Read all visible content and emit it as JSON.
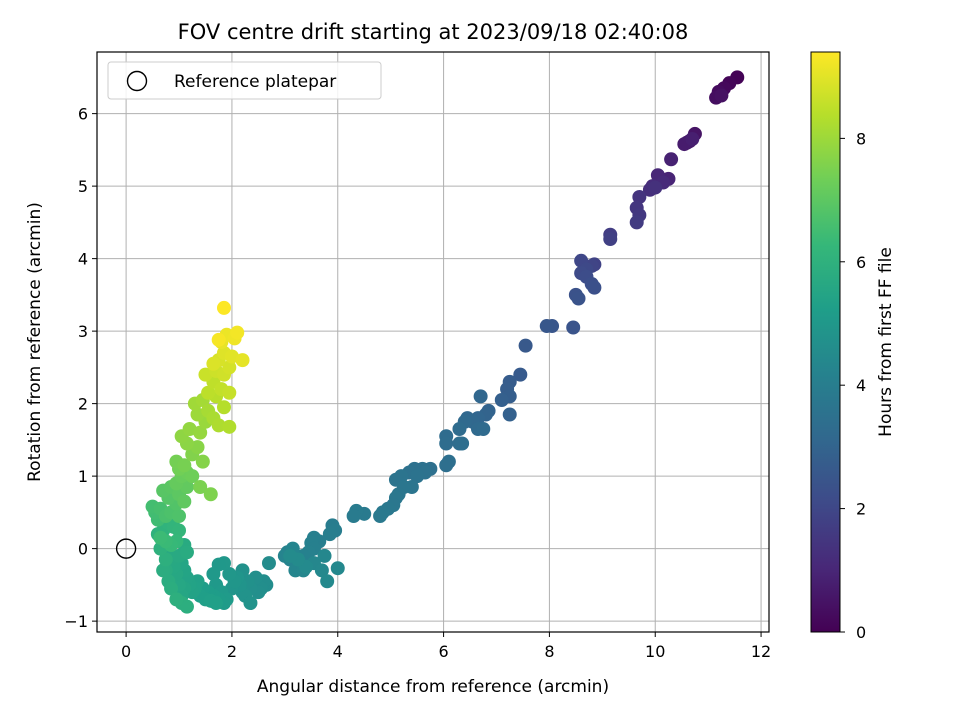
{
  "chart_data": {
    "type": "scatter",
    "title": "FOV centre drift starting at 2023/09/18 02:40:08",
    "xlabel": "Angular distance from reference (arcmin)",
    "ylabel": "Rotation from reference (arcmin)",
    "xlim": [
      -0.55,
      12.15
    ],
    "ylim": [
      -1.15,
      6.85
    ],
    "xticks": [
      0,
      2,
      4,
      6,
      8,
      10,
      12
    ],
    "yticks": [
      -1,
      0,
      1,
      2,
      3,
      4,
      5,
      6
    ],
    "xtick_labels": [
      "0",
      "2",
      "4",
      "6",
      "8",
      "10",
      "12"
    ],
    "ytick_labels": [
      "−1",
      "0",
      "1",
      "2",
      "3",
      "4",
      "5",
      "6"
    ],
    "grid": true,
    "legend": {
      "position": "top-left",
      "entries": [
        {
          "label": "Reference platepar",
          "marker": "open-circle"
        }
      ]
    },
    "reference_point": {
      "x": 0,
      "y": 0
    },
    "colorbar": {
      "label": "Hours from first FF file",
      "colormap": "viridis",
      "range": [
        0,
        9.4
      ],
      "ticks": [
        0,
        2,
        4,
        6,
        8
      ],
      "tick_labels": [
        "0",
        "2",
        "4",
        "6",
        "8"
      ]
    },
    "points": [
      [
        11.55,
        6.5,
        0.05
      ],
      [
        11.4,
        6.42,
        0.12
      ],
      [
        11.3,
        6.35,
        0.2
      ],
      [
        11.2,
        6.3,
        0.28
      ],
      [
        11.15,
        6.22,
        0.35
      ],
      [
        11.25,
        6.25,
        0.42
      ],
      [
        10.75,
        5.72,
        0.5
      ],
      [
        10.65,
        5.62,
        0.58
      ],
      [
        10.6,
        5.6,
        0.65
      ],
      [
        10.55,
        5.58,
        0.72
      ],
      [
        10.7,
        5.65,
        0.8
      ],
      [
        10.3,
        5.37,
        0.88
      ],
      [
        10.25,
        5.1,
        0.95
      ],
      [
        10.05,
        5.15,
        1.02
      ],
      [
        10.15,
        5.05,
        1.1
      ],
      [
        9.95,
        5.0,
        1.18
      ],
      [
        9.9,
        4.95,
        1.25
      ],
      [
        10.0,
        4.98,
        1.32
      ],
      [
        9.7,
        4.85,
        1.4
      ],
      [
        9.65,
        4.7,
        1.48
      ],
      [
        9.7,
        4.6,
        1.55
      ],
      [
        9.65,
        4.5,
        1.62
      ],
      [
        9.15,
        4.33,
        1.7
      ],
      [
        9.15,
        4.27,
        1.78
      ],
      [
        8.85,
        3.92,
        1.85
      ],
      [
        8.8,
        3.9,
        1.92
      ],
      [
        8.6,
        3.97,
        2.0
      ],
      [
        8.7,
        3.85,
        2.05
      ],
      [
        8.6,
        3.8,
        2.12
      ],
      [
        8.7,
        3.75,
        2.2
      ],
      [
        8.8,
        3.65,
        2.25
      ],
      [
        8.85,
        3.6,
        2.3
      ],
      [
        8.5,
        3.5,
        2.35
      ],
      [
        8.55,
        3.45,
        2.4
      ],
      [
        8.45,
        3.05,
        2.45
      ],
      [
        8.05,
        3.07,
        2.5
      ],
      [
        7.95,
        3.07,
        2.55
      ],
      [
        7.55,
        2.8,
        2.6
      ],
      [
        7.45,
        2.4,
        2.65
      ],
      [
        7.25,
        2.3,
        2.7
      ],
      [
        7.2,
        2.2,
        2.75
      ],
      [
        7.25,
        2.1,
        2.8
      ],
      [
        7.1,
        2.05,
        2.85
      ],
      [
        7.25,
        1.85,
        2.9
      ],
      [
        6.85,
        1.9,
        2.95
      ],
      [
        6.8,
        1.85,
        3.0
      ],
      [
        6.65,
        1.8,
        3.05
      ],
      [
        6.7,
        2.1,
        3.1
      ],
      [
        6.55,
        1.75,
        3.12
      ],
      [
        6.45,
        1.8,
        3.15
      ],
      [
        6.4,
        1.75,
        3.2
      ],
      [
        6.65,
        1.65,
        3.22
      ],
      [
        6.75,
        1.65,
        3.25
      ],
      [
        6.3,
        1.65,
        3.28
      ],
      [
        6.05,
        1.55,
        3.3
      ],
      [
        6.05,
        1.45,
        3.32
      ],
      [
        6.3,
        1.45,
        3.35
      ],
      [
        6.35,
        1.45,
        3.38
      ],
      [
        6.1,
        1.2,
        3.4
      ],
      [
        6.05,
        1.15,
        3.42
      ],
      [
        5.75,
        1.1,
        3.45
      ],
      [
        5.6,
        1.1,
        3.48
      ],
      [
        5.45,
        1.1,
        3.5
      ],
      [
        5.35,
        1.05,
        3.52
      ],
      [
        5.65,
        1.05,
        3.55
      ],
      [
        5.5,
        1.0,
        3.58
      ],
      [
        5.2,
        1.0,
        3.6
      ],
      [
        5.1,
        0.95,
        3.62
      ],
      [
        5.4,
        0.85,
        3.65
      ],
      [
        5.25,
        0.85,
        3.68
      ],
      [
        5.15,
        0.75,
        3.7
      ],
      [
        5.1,
        0.7,
        3.72
      ],
      [
        5.05,
        0.6,
        3.75
      ],
      [
        4.95,
        0.55,
        3.78
      ],
      [
        4.85,
        0.5,
        3.8
      ],
      [
        4.8,
        0.45,
        3.82
      ],
      [
        4.5,
        0.48,
        3.85
      ],
      [
        4.35,
        0.52,
        3.88
      ],
      [
        4.3,
        0.45,
        3.9
      ],
      [
        3.9,
        0.32,
        3.95
      ],
      [
        3.95,
        0.25,
        3.98
      ],
      [
        3.85,
        0.2,
        4.0
      ],
      [
        3.65,
        0.1,
        4.02
      ],
      [
        3.55,
        0.15,
        4.05
      ],
      [
        3.5,
        0.08,
        4.08
      ],
      [
        3.55,
        0.0,
        4.1
      ],
      [
        3.45,
        -0.05,
        4.12
      ],
      [
        3.35,
        -0.1,
        4.15
      ],
      [
        3.3,
        -0.2,
        4.18
      ],
      [
        3.1,
        -0.15,
        4.2
      ],
      [
        3.05,
        -0.05,
        4.22
      ],
      [
        3.0,
        -0.1,
        4.25
      ],
      [
        3.15,
        0.0,
        4.28
      ],
      [
        3.2,
        -0.3,
        4.3
      ],
      [
        3.35,
        -0.3,
        4.32
      ],
      [
        3.55,
        -0.2,
        4.35
      ],
      [
        3.75,
        -0.1,
        4.38
      ],
      [
        3.7,
        -0.3,
        4.4
      ],
      [
        4.0,
        -0.27,
        4.42
      ],
      [
        3.8,
        -0.45,
        4.45
      ],
      [
        3.4,
        -0.25,
        4.48
      ],
      [
        3.25,
        -0.15,
        4.5
      ],
      [
        3.1,
        -0.1,
        4.52
      ],
      [
        2.7,
        -0.2,
        4.55
      ],
      [
        2.65,
        -0.5,
        4.58
      ],
      [
        2.6,
        -0.45,
        4.6
      ],
      [
        2.55,
        -0.55,
        4.62
      ],
      [
        2.5,
        -0.6,
        4.65
      ],
      [
        2.45,
        -0.4,
        4.68
      ],
      [
        2.35,
        -0.55,
        4.7
      ],
      [
        2.3,
        -0.45,
        4.72
      ],
      [
        2.2,
        -0.3,
        4.75
      ],
      [
        2.2,
        -0.6,
        4.78
      ],
      [
        2.25,
        -0.65,
        4.8
      ],
      [
        2.35,
        -0.75,
        4.82
      ],
      [
        2.15,
        -0.5,
        4.85
      ],
      [
        2.1,
        -0.4,
        4.88
      ],
      [
        2.0,
        -0.55,
        4.9
      ],
      [
        2.05,
        -0.45,
        4.92
      ],
      [
        1.95,
        -0.35,
        4.95
      ],
      [
        1.85,
        -0.2,
        4.98
      ],
      [
        1.75,
        -0.22,
        5.0
      ],
      [
        1.65,
        -0.35,
        5.02
      ],
      [
        1.7,
        -0.5,
        5.05
      ],
      [
        1.8,
        -0.6,
        5.08
      ],
      [
        1.9,
        -0.7,
        5.1
      ],
      [
        1.85,
        -0.75,
        5.12
      ],
      [
        1.75,
        -0.7,
        5.15
      ],
      [
        1.65,
        -0.65,
        5.18
      ],
      [
        1.55,
        -0.6,
        5.2
      ],
      [
        1.45,
        -0.55,
        5.22
      ],
      [
        1.4,
        -0.65,
        5.25
      ],
      [
        1.5,
        -0.7,
        5.28
      ],
      [
        1.6,
        -0.72,
        5.3
      ],
      [
        1.7,
        -0.75,
        5.32
      ],
      [
        1.35,
        -0.45,
        5.35
      ],
      [
        1.3,
        -0.55,
        5.38
      ],
      [
        1.25,
        -0.6,
        5.4
      ],
      [
        1.2,
        -0.5,
        5.42
      ],
      [
        1.15,
        -0.4,
        5.45
      ],
      [
        1.1,
        -0.3,
        5.48
      ],
      [
        1.05,
        -0.2,
        5.5
      ],
      [
        1.1,
        -0.55,
        5.52
      ],
      [
        1.05,
        -0.65,
        5.55
      ],
      [
        1.0,
        -0.5,
        5.58
      ],
      [
        0.95,
        -0.35,
        5.6
      ],
      [
        0.9,
        -0.25,
        5.62
      ],
      [
        0.85,
        -0.15,
        5.65
      ],
      [
        0.8,
        -0.05,
        5.68
      ],
      [
        1.0,
        -0.1,
        5.7
      ],
      [
        1.1,
        0.05,
        5.72
      ],
      [
        1.15,
        -0.05,
        5.75
      ],
      [
        0.75,
        -0.3,
        5.78
      ],
      [
        0.8,
        -0.45,
        5.8
      ],
      [
        0.7,
        -0.3,
        5.82
      ],
      [
        0.85,
        -0.55,
        5.85
      ],
      [
        1.05,
        -0.75,
        5.88
      ],
      [
        1.15,
        -0.8,
        5.9
      ],
      [
        0.95,
        -0.7,
        5.92
      ],
      [
        0.75,
        -0.15,
        5.95
      ],
      [
        0.65,
        0.0,
        5.98
      ],
      [
        0.6,
        0.2,
        6.0
      ],
      [
        0.7,
        0.25,
        6.05
      ],
      [
        0.8,
        0.35,
        6.1
      ],
      [
        0.9,
        0.3,
        6.15
      ],
      [
        1.0,
        0.25,
        6.2
      ],
      [
        0.95,
        0.1,
        6.25
      ],
      [
        0.85,
        0.05,
        6.3
      ],
      [
        0.75,
        0.1,
        6.35
      ],
      [
        0.65,
        0.15,
        6.4
      ],
      [
        0.6,
        0.4,
        6.45
      ],
      [
        0.55,
        0.5,
        6.5
      ],
      [
        0.5,
        0.58,
        6.55
      ],
      [
        0.65,
        0.55,
        6.6
      ],
      [
        0.75,
        0.45,
        6.65
      ],
      [
        0.85,
        0.5,
        6.7
      ],
      [
        1.0,
        0.45,
        6.75
      ],
      [
        0.95,
        0.62,
        6.8
      ],
      [
        0.8,
        0.7,
        6.85
      ],
      [
        0.7,
        0.8,
        6.9
      ],
      [
        0.85,
        0.85,
        6.95
      ],
      [
        1.0,
        0.75,
        7.0
      ],
      [
        1.1,
        0.65,
        7.05
      ],
      [
        1.15,
        0.85,
        7.1
      ],
      [
        0.95,
        0.9,
        7.15
      ],
      [
        1.05,
        1.0,
        7.2
      ],
      [
        1.15,
        1.05,
        7.25
      ],
      [
        1.25,
        1.0,
        7.3
      ],
      [
        1.0,
        1.1,
        7.35
      ],
      [
        0.95,
        1.2,
        7.4
      ],
      [
        1.1,
        1.15,
        7.45
      ],
      [
        1.4,
        0.85,
        7.5
      ],
      [
        1.6,
        0.75,
        7.55
      ],
      [
        1.25,
        1.3,
        7.6
      ],
      [
        1.45,
        1.2,
        7.65
      ],
      [
        1.35,
        1.4,
        7.7
      ],
      [
        1.15,
        1.45,
        7.75
      ],
      [
        1.05,
        1.55,
        7.8
      ],
      [
        1.2,
        1.65,
        7.85
      ],
      [
        1.4,
        1.6,
        7.9
      ],
      [
        1.5,
        1.75,
        7.95
      ],
      [
        1.35,
        1.85,
        8.0
      ],
      [
        1.3,
        2.0,
        8.05
      ],
      [
        1.45,
        2.05,
        8.1
      ],
      [
        1.55,
        1.9,
        8.15
      ],
      [
        1.65,
        1.8,
        8.2
      ],
      [
        1.75,
        1.7,
        8.25
      ],
      [
        1.95,
        1.68,
        8.3
      ],
      [
        1.85,
        1.95,
        8.35
      ],
      [
        1.7,
        2.1,
        8.4
      ],
      [
        1.55,
        2.15,
        8.45
      ],
      [
        1.65,
        2.3,
        8.5
      ],
      [
        1.8,
        2.2,
        8.55
      ],
      [
        1.95,
        2.15,
        8.6
      ],
      [
        1.5,
        2.4,
        8.65
      ],
      [
        1.7,
        2.45,
        8.7
      ],
      [
        1.85,
        2.4,
        8.75
      ],
      [
        1.95,
        2.5,
        8.8
      ],
      [
        1.75,
        2.6,
        8.85
      ],
      [
        1.65,
        2.55,
        8.9
      ],
      [
        1.85,
        2.7,
        8.95
      ],
      [
        2.0,
        2.65,
        9.0
      ],
      [
        2.2,
        2.6,
        9.05
      ],
      [
        1.8,
        2.85,
        9.1
      ],
      [
        1.9,
        2.95,
        9.15
      ],
      [
        2.05,
        2.9,
        9.2
      ],
      [
        2.1,
        2.98,
        9.25
      ],
      [
        1.75,
        2.88,
        9.3
      ],
      [
        1.85,
        3.32,
        9.38
      ]
    ]
  }
}
